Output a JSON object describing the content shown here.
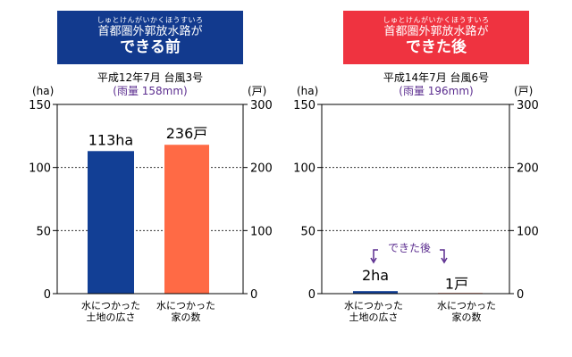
{
  "colors": {
    "before_header": "#123a8e",
    "after_header": "#ef3340",
    "area_bar": "#123f95",
    "houses_bar": "#ff6a45",
    "note": "#5b2d8f"
  },
  "left_panel": {
    "header_ruby": "しゅとけんがいかくほうすいろ",
    "header_line1": "首都圏外郭放水路が",
    "header_line2": "できる前",
    "subtitle": "平成12年7月 台風3号",
    "rain": "(雨量 158mm)"
  },
  "right_panel": {
    "header_ruby": "しゅとけんがいかくほうすいろ",
    "header_line1": "首都圏外郭放水路が",
    "header_line2": "できた後",
    "subtitle": "平成14年7月 台風6号",
    "rain": "(雨量 196mm)",
    "annotation": "できた後"
  },
  "chart_data": [
    {
      "type": "bar",
      "categories": [
        "水につかった\n土地の広さ",
        "水につかった\n家の数"
      ],
      "left_axis": {
        "unit": "(ha)",
        "ylim": [
          0,
          150
        ],
        "ticks": [
          0,
          50,
          100,
          150
        ]
      },
      "right_axis": {
        "unit": "(戸)",
        "ylim": [
          0,
          300
        ],
        "ticks": [
          0,
          100,
          200,
          300
        ]
      },
      "values": [
        113,
        236
      ],
      "axis": [
        "left",
        "right"
      ],
      "value_labels": [
        "113ha",
        "236戸"
      ],
      "grid": true
    },
    {
      "type": "bar",
      "categories": [
        "水につかった\n土地の広さ",
        "水につかった\n家の数"
      ],
      "left_axis": {
        "unit": "(ha)",
        "ylim": [
          0,
          150
        ],
        "ticks": [
          0,
          50,
          100,
          150
        ]
      },
      "right_axis": {
        "unit": "(戸)",
        "ylim": [
          0,
          300
        ],
        "ticks": [
          0,
          100,
          200,
          300
        ]
      },
      "values": [
        2,
        1
      ],
      "axis": [
        "left",
        "right"
      ],
      "value_labels": [
        "2ha",
        "1戸"
      ],
      "grid": true
    }
  ]
}
